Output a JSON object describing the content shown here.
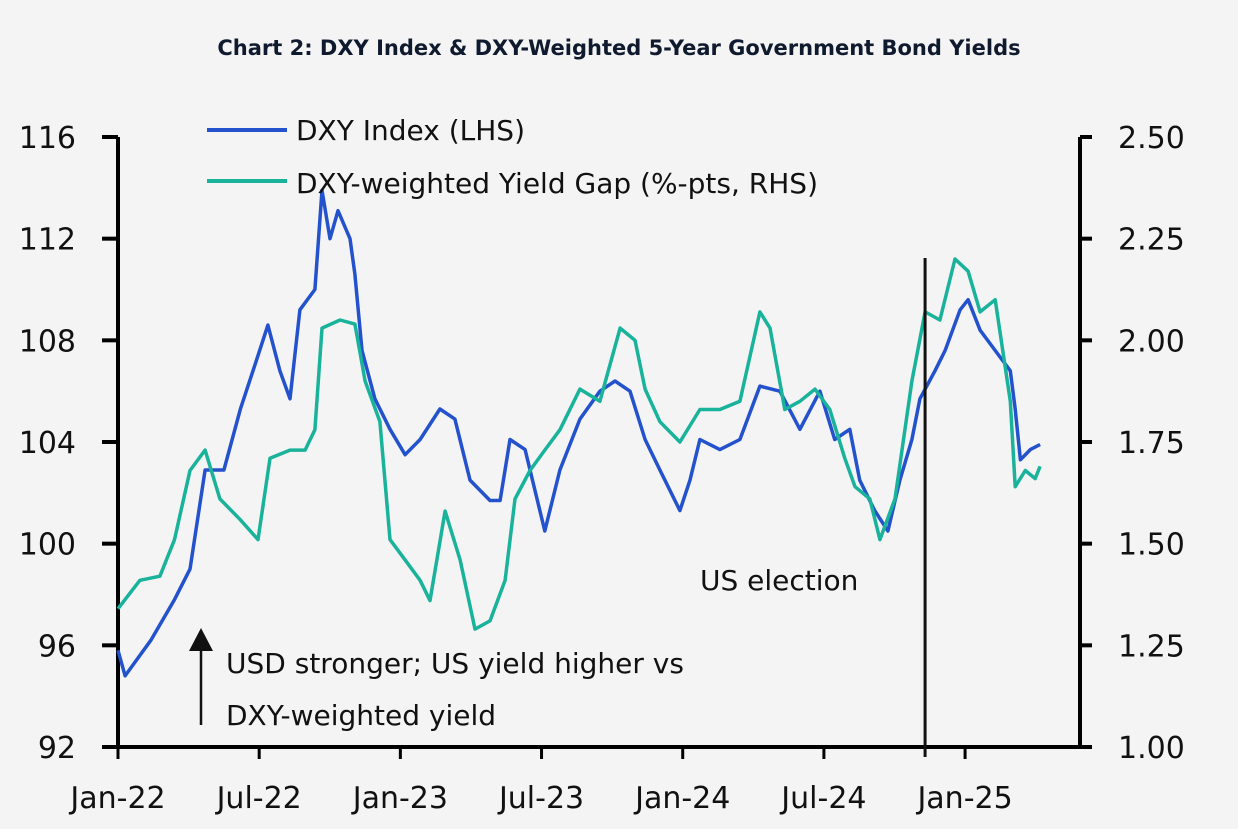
{
  "chart_data": {
    "type": "line",
    "title": "Chart 2: DXY Index & DXY-Weighted 5-Year Government Bond Yields",
    "xlabel": "",
    "ylabel_left": "",
    "ylabel_right": "",
    "x_unit": "months since Jan-22",
    "x_range": [
      0,
      40
    ],
    "x_ticks": [
      {
        "month": 0,
        "label": "Jan-22"
      },
      {
        "month": 6,
        "label": "Jul-22"
      },
      {
        "month": 12,
        "label": "Jan-23"
      },
      {
        "month": 18,
        "label": "Jul-23"
      },
      {
        "month": 24,
        "label": "Jan-24"
      },
      {
        "month": 30,
        "label": "Jul-24"
      },
      {
        "month": 36,
        "label": "Jan-25"
      }
    ],
    "y_left": {
      "range": [
        92,
        116
      ],
      "ticks": [
        "92",
        "96",
        "100",
        "104",
        "108",
        "112",
        "116"
      ],
      "tick_values": [
        92,
        96,
        100,
        104,
        108,
        112,
        116
      ]
    },
    "y_right": {
      "range": [
        1.0,
        2.5
      ],
      "ticks": [
        "1.00",
        "1.25",
        "1.50",
        "1.75",
        "2.00",
        "2.25",
        "2.50"
      ],
      "tick_values": [
        1.0,
        1.25,
        1.5,
        1.75,
        2.0,
        2.25,
        2.5
      ]
    },
    "grid": false,
    "legend_position": "top-left",
    "series": [
      {
        "name": "DXY Index (LHS)",
        "axis": "left",
        "color": "#2352cc",
        "x": [
          0,
          0.3,
          1.4,
          2.4,
          3.06,
          3.7,
          4.5,
          5.2,
          5.95,
          6.37,
          6.88,
          7.31,
          7.73,
          8.37,
          8.67,
          9.01,
          9.35,
          9.86,
          10.07,
          10.37,
          10.92,
          11.56,
          12.2,
          12.84,
          13.68,
          14.32,
          14.96,
          15.81,
          16.24,
          16.66,
          17.3,
          18.14,
          18.78,
          19.63,
          20.48,
          21.12,
          21.76,
          22.4,
          23.03,
          23.88,
          24.31,
          24.73,
          25.58,
          26.43,
          27.28,
          28.13,
          28.98,
          29.83,
          30.46,
          31.1,
          31.52,
          32.16,
          32.72,
          33.23,
          33.74,
          34.08,
          34.72,
          35.15,
          35.79,
          36.13,
          36.64,
          37.28,
          37.92,
          38.13,
          38.35,
          38.77,
          39.19
        ],
        "y": [
          95.8,
          94.8,
          96.2,
          97.8,
          99.0,
          102.9,
          102.9,
          105.3,
          107.4,
          108.6,
          106.8,
          105.7,
          109.2,
          110.0,
          113.9,
          112.0,
          113.1,
          112.0,
          110.6,
          107.6,
          105.7,
          104.5,
          103.5,
          104.1,
          105.3,
          104.9,
          102.5,
          101.7,
          101.7,
          104.1,
          103.7,
          100.5,
          102.9,
          104.9,
          106.0,
          106.4,
          106.0,
          104.1,
          102.9,
          101.3,
          102.5,
          104.1,
          103.7,
          104.1,
          106.2,
          106.0,
          104.5,
          106.0,
          104.1,
          104.5,
          102.5,
          101.3,
          100.5,
          102.5,
          104.1,
          105.7,
          106.8,
          107.6,
          109.2,
          109.6,
          108.4,
          107.6,
          106.8,
          105.3,
          103.3,
          103.7,
          103.9
        ]
      },
      {
        "name": "DXY-weighted Yield Gap (%-pts, RHS)",
        "axis": "right",
        "color": "#19b29a",
        "x": [
          0,
          0.93,
          1.78,
          2.4,
          3.06,
          3.7,
          4.33,
          5.18,
          5.95,
          6.46,
          7.31,
          7.95,
          8.37,
          8.67,
          9.44,
          10.07,
          10.5,
          11.13,
          11.56,
          12.2,
          12.84,
          13.26,
          13.9,
          14.54,
          15.17,
          15.81,
          16.45,
          16.87,
          17.51,
          18.14,
          18.78,
          19.63,
          20.48,
          21.34,
          21.97,
          22.4,
          23.03,
          23.88,
          24.73,
          25.58,
          26.43,
          27.28,
          27.71,
          28.34,
          28.98,
          29.62,
          30.25,
          30.89,
          31.32,
          31.95,
          32.38,
          33.02,
          33.74,
          34.3,
          34.93,
          35.57,
          36.13,
          36.64,
          37.28,
          37.92,
          38.13,
          38.56,
          38.98,
          39.19
        ],
        "y": [
          1.34,
          1.41,
          1.42,
          1.51,
          1.68,
          1.73,
          1.61,
          1.56,
          1.51,
          1.71,
          1.73,
          1.73,
          1.78,
          2.03,
          2.05,
          2.04,
          1.9,
          1.8,
          1.51,
          1.46,
          1.41,
          1.36,
          1.58,
          1.46,
          1.29,
          1.31,
          1.41,
          1.61,
          1.68,
          1.73,
          1.78,
          1.88,
          1.85,
          2.03,
          2.0,
          1.88,
          1.8,
          1.75,
          1.83,
          1.83,
          1.85,
          2.07,
          2.03,
          1.83,
          1.85,
          1.88,
          1.83,
          1.71,
          1.64,
          1.61,
          1.51,
          1.61,
          1.9,
          2.07,
          2.05,
          2.2,
          2.17,
          2.07,
          2.1,
          1.85,
          1.64,
          1.68,
          1.66,
          1.69
        ]
      }
    ],
    "annotations": [
      {
        "type": "arrow",
        "direction": "up",
        "text_lines": [
          "USD stronger;  US yield higher vs",
          "DXY-weighted yield"
        ]
      },
      {
        "type": "vline",
        "month": 34.3,
        "label": "US election"
      }
    ]
  }
}
